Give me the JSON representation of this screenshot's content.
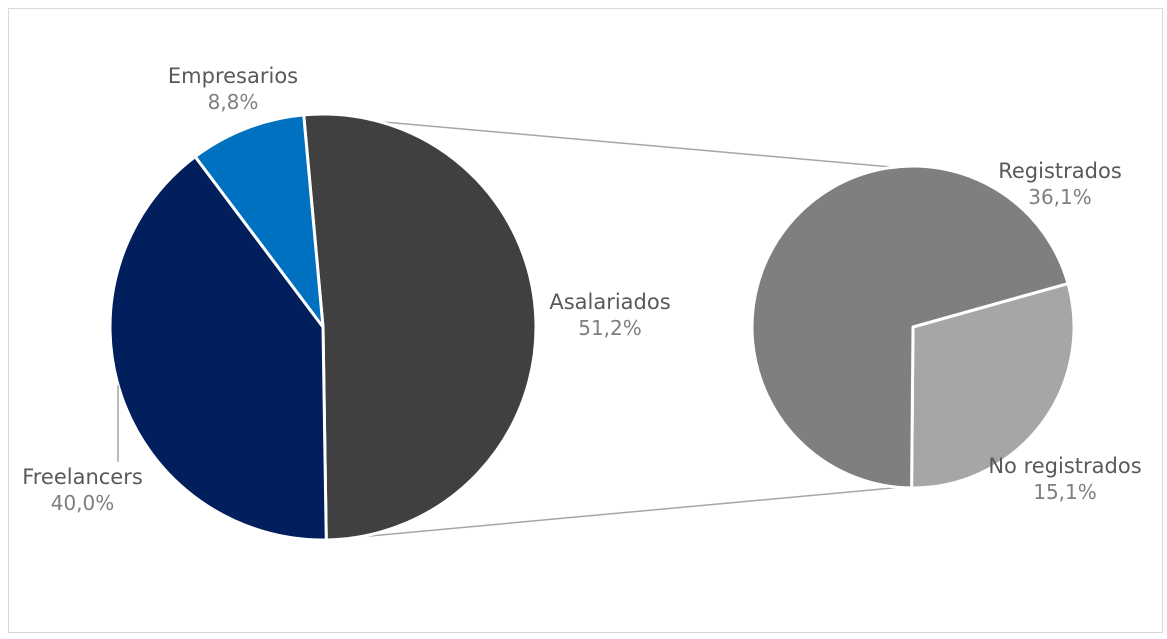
{
  "chart_data": {
    "type": "pie",
    "subtype": "pie-of-pie",
    "main_pie": {
      "slices": [
        {
          "label": "Asalariados",
          "value": 51.2,
          "value_label": "51,2%",
          "color": "#404040"
        },
        {
          "label": "Freelancers",
          "value": 40.0,
          "value_label": "40,0%",
          "color": "#001F5C"
        },
        {
          "label": "Empresarios",
          "value": 8.8,
          "value_label": "8,8%",
          "color": "#0070C0"
        }
      ]
    },
    "secondary_pie": {
      "breakdown_of": "Asalariados",
      "slices": [
        {
          "label": "Registrados",
          "value": 36.1,
          "value_label": "36,1%",
          "color": "#7F7F7F"
        },
        {
          "label": "No registrados",
          "value": 15.1,
          "value_label": "15,1%",
          "color": "#A6A6A6"
        }
      ]
    },
    "title": "",
    "legend": "none",
    "connector_color": "#A6A6A6"
  }
}
